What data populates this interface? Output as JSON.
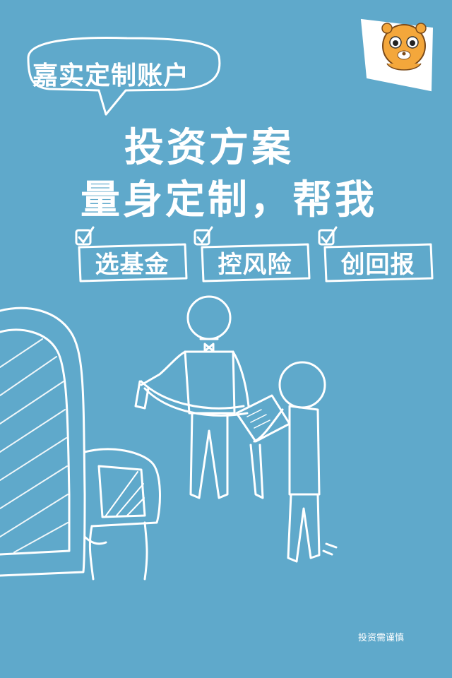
{
  "poster": {
    "bubble_title": "嘉实定制账户",
    "headline_line1": "投资方案",
    "headline_line2": "量身定制，帮我",
    "tags": [
      "选基金",
      "控风险",
      "创回报"
    ],
    "disclaimer": "投资需谨慎"
  },
  "colors": {
    "background": "#5fa9cb",
    "line": "#ffffff",
    "mascot_orange": "#f4a73b"
  },
  "icons": [
    "checkmark-icon",
    "mascot-tiger-icon"
  ]
}
